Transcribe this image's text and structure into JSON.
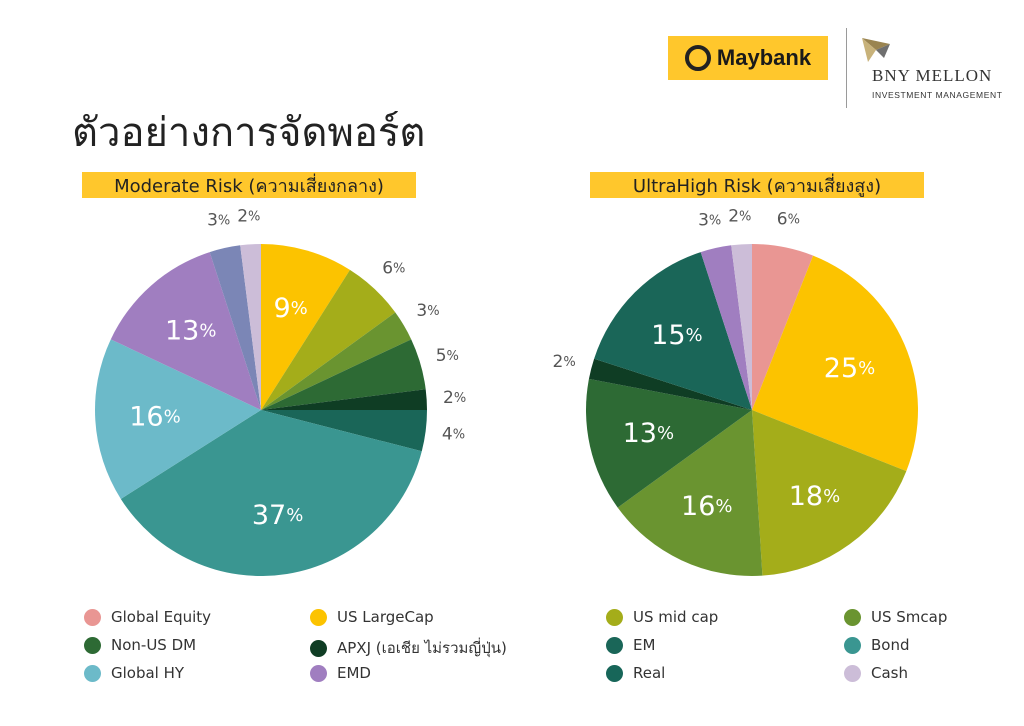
{
  "header": {
    "title": "ตัวอย่างการจัดพอร์ต",
    "maybank_logo": "Maybank",
    "bny_logo_name": "BNY MELLON",
    "bny_logo_sub": "INVESTMENT MANAGEMENT"
  },
  "colors": {
    "Global Equity": "#e99693",
    "US LargeCap": "#fcc300",
    "US mid cap": "#a4ad1a",
    "US Smcap": "#6a9430",
    "Non-US DM": "#2d6a34",
    "APXJ (เอเชีย ไม่รวมญี่ปุ่น)": "#0f3d24",
    "EM": "#1a6658",
    "Bond": "#3a9691",
    "Global HY": "#6cbac9",
    "EMD": "#a07ec0",
    "Real": "#176659",
    "EM_small": "#7b86b6",
    "Cash": "#ccbdd8"
  },
  "chart_data": [
    {
      "type": "pie",
      "title": "Moderate Risk (ความเสี่ยงกลาง)",
      "slices": [
        {
          "label": "US LargeCap",
          "value": 9,
          "text": "9",
          "color": "#fcc300"
        },
        {
          "label": "US mid cap",
          "value": 6,
          "text": "6",
          "color": "#a4ad1a"
        },
        {
          "label": "US Smcap",
          "value": 3,
          "text": "3",
          "color": "#6a9430"
        },
        {
          "label": "Non-US DM",
          "value": 5,
          "text": "5",
          "color": "#2d6a34"
        },
        {
          "label": "APXJ (เอเชีย ไม่รวมญี่ปุ่น)",
          "value": 2,
          "text": "2",
          "color": "#0f3d24"
        },
        {
          "label": "EM",
          "value": 4,
          "text": "4",
          "color": "#1a6658"
        },
        {
          "label": "Bond",
          "value": 37,
          "text": "37",
          "color": "#3a9691"
        },
        {
          "label": "Global HY",
          "value": 16,
          "text": "16",
          "color": "#6cbac9"
        },
        {
          "label": "EMD",
          "value": 13,
          "text": "13",
          "color": "#a07ec0"
        },
        {
          "label": "Real",
          "value": 3,
          "text": "3",
          "color": "#7b86b6"
        },
        {
          "label": "Cash",
          "value": 2,
          "text": "2",
          "color": "#ccbdd8"
        }
      ]
    },
    {
      "type": "pie",
      "title": "UltraHigh Risk (ความเสี่ยงสูง)",
      "slices": [
        {
          "label": "Global Equity",
          "value": 6,
          "text": "6",
          "color": "#e99693"
        },
        {
          "label": "US LargeCap",
          "value": 25,
          "text": "25",
          "color": "#fcc300"
        },
        {
          "label": "US mid cap",
          "value": 18,
          "text": "18",
          "color": "#a4ad1a"
        },
        {
          "label": "US Smcap",
          "value": 16,
          "text": "16",
          "color": "#6a9430"
        },
        {
          "label": "Non-US DM",
          "value": 13,
          "text": "13",
          "color": "#2d6a34"
        },
        {
          "label": "APXJ (เอเชีย ไม่รวมญี่ปุ่น)",
          "value": 2,
          "text": "2",
          "color": "#0f3d24"
        },
        {
          "label": "EM",
          "value": 15,
          "text": "15",
          "color": "#1a6658"
        },
        {
          "label": "EMD",
          "value": 3,
          "text": "3",
          "color": "#a07ec0"
        },
        {
          "label": "Cash",
          "value": 2,
          "text": "2",
          "color": "#ccbdd8"
        }
      ]
    }
  ],
  "percent_sign": "%",
  "legend": [
    {
      "label": "Global Equity",
      "color": "#e99693"
    },
    {
      "label": "US LargeCap",
      "color": "#fcc300"
    },
    {
      "label": "US mid cap",
      "color": "#a4ad1a"
    },
    {
      "label": "US Smcap",
      "color": "#6a9430"
    },
    {
      "label": "Non-US DM",
      "color": "#2d6a34"
    },
    {
      "label": "APXJ (เอเชีย ไม่รวมญี่ปุ่น)",
      "color": "#0f3d24"
    },
    {
      "label": "EM",
      "color": "#1a6658"
    },
    {
      "label": "Bond",
      "color": "#3a9691"
    },
    {
      "label": "Global HY",
      "color": "#6cbac9"
    },
    {
      "label": "EMD",
      "color": "#a07ec0"
    },
    {
      "label": "Real",
      "color": "#176659"
    },
    {
      "label": "Cash",
      "color": "#ccbdd8"
    }
  ]
}
